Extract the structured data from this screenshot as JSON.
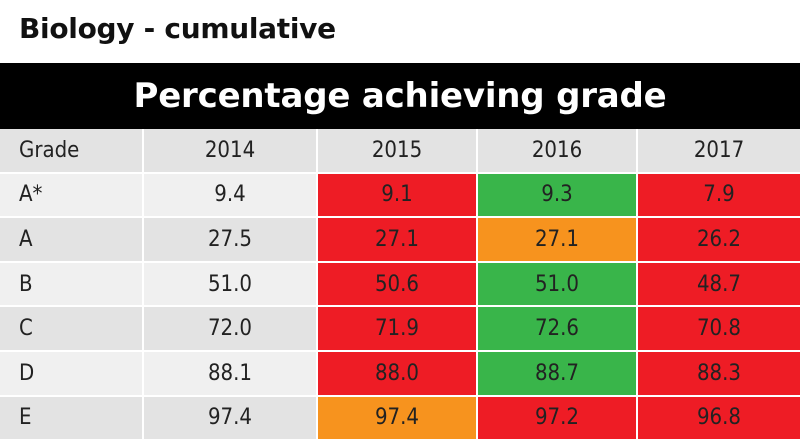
{
  "title": "Biology - cumulative",
  "banner": "Percentage achieving grade",
  "colors": {
    "header_bg": "#e3e3e3",
    "label_light": "#f0f0f0",
    "label_dark": "#e3e3e3",
    "red": "#ee1c25",
    "green": "#39b54a",
    "orange": "#f7931e"
  },
  "chart_data": {
    "type": "table",
    "title": "Percentage achieving grade",
    "columns": [
      "Grade",
      "2014",
      "2015",
      "2016",
      "2017"
    ],
    "rows": [
      {
        "grade": "A*",
        "values": [
          "9.4",
          "9.1",
          "9.3",
          "7.9"
        ],
        "fills": [
          "none",
          "red",
          "green",
          "red"
        ]
      },
      {
        "grade": "A",
        "values": [
          "27.5",
          "27.1",
          "27.1",
          "26.2"
        ],
        "fills": [
          "none",
          "red",
          "orange",
          "red"
        ]
      },
      {
        "grade": "B",
        "values": [
          "51.0",
          "50.6",
          "51.0",
          "48.7"
        ],
        "fills": [
          "none",
          "red",
          "green",
          "red"
        ]
      },
      {
        "grade": "C",
        "values": [
          "72.0",
          "71.9",
          "72.6",
          "70.8"
        ],
        "fills": [
          "none",
          "red",
          "green",
          "red"
        ]
      },
      {
        "grade": "D",
        "values": [
          "88.1",
          "88.0",
          "88.7",
          "88.3"
        ],
        "fills": [
          "none",
          "red",
          "green",
          "red"
        ]
      },
      {
        "grade": "E",
        "values": [
          "97.4",
          "97.4",
          "97.2",
          "96.8"
        ],
        "fills": [
          "none",
          "orange",
          "red",
          "red"
        ]
      }
    ]
  }
}
